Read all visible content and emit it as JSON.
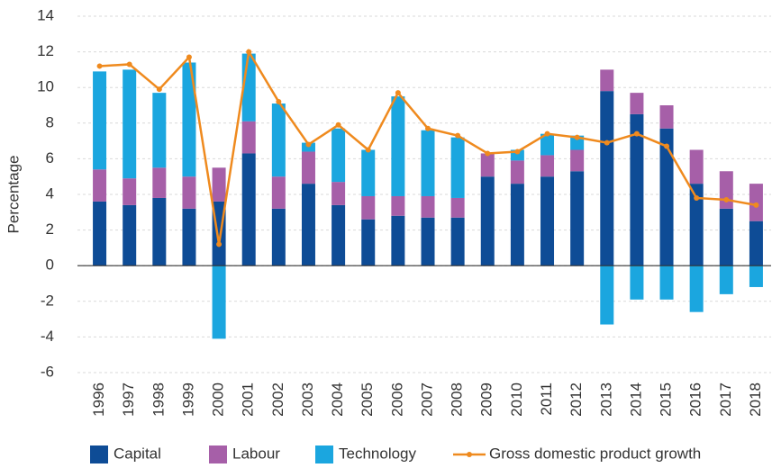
{
  "chart_data": {
    "type": "bar",
    "stacked": true,
    "ylabel": "Percentage",
    "categories": [
      "1996",
      "1997",
      "1998",
      "1999",
      "2000",
      "2001",
      "2002",
      "2003",
      "2004",
      "2005",
      "2006",
      "2007",
      "2008",
      "2009",
      "2010",
      "2011",
      "2012",
      "2013",
      "2014",
      "2015",
      "2016",
      "2017",
      "2018"
    ],
    "series": [
      {
        "name": "Capital",
        "type": "bar",
        "color": "#0e4c96",
        "values": [
          3.6,
          3.4,
          3.8,
          3.2,
          3.6,
          6.3,
          3.2,
          4.6,
          3.4,
          2.6,
          2.8,
          2.7,
          2.7,
          5.0,
          4.6,
          5.0,
          5.3,
          9.8,
          8.5,
          7.7,
          4.6,
          3.2,
          2.5
        ]
      },
      {
        "name": "Labour",
        "type": "bar",
        "color": "#a65fa8",
        "values": [
          1.8,
          1.5,
          1.7,
          1.8,
          1.9,
          1.8,
          1.8,
          1.8,
          1.3,
          1.3,
          1.1,
          1.2,
          1.1,
          1.3,
          1.3,
          1.2,
          1.2,
          1.2,
          1.2,
          1.3,
          1.9,
          2.1,
          2.1
        ]
      },
      {
        "name": "Technology",
        "type": "bar",
        "color": "#1ba6df",
        "values": [
          5.5,
          6.1,
          4.2,
          6.4,
          -4.1,
          3.8,
          4.1,
          0.5,
          3.0,
          2.6,
          5.6,
          3.7,
          3.4,
          0,
          0.6,
          1.2,
          0.8,
          -3.3,
          -1.9,
          -1.9,
          -2.6,
          -1.6,
          -1.2
        ]
      },
      {
        "name": "Gross domestic product growth",
        "type": "line",
        "color": "#ef8a1e",
        "values": [
          11.2,
          11.3,
          9.9,
          11.7,
          1.2,
          12.0,
          9.2,
          6.8,
          7.9,
          6.5,
          9.7,
          7.7,
          7.3,
          6.3,
          6.4,
          7.4,
          7.2,
          6.9,
          7.4,
          6.7,
          3.8,
          3.7,
          3.4
        ]
      }
    ],
    "ylim": [
      -6,
      14
    ],
    "yticks": [
      -6,
      -4,
      -2,
      0,
      2,
      4,
      6,
      8,
      10,
      12,
      14
    ],
    "grid": true,
    "legend": "bottom"
  }
}
